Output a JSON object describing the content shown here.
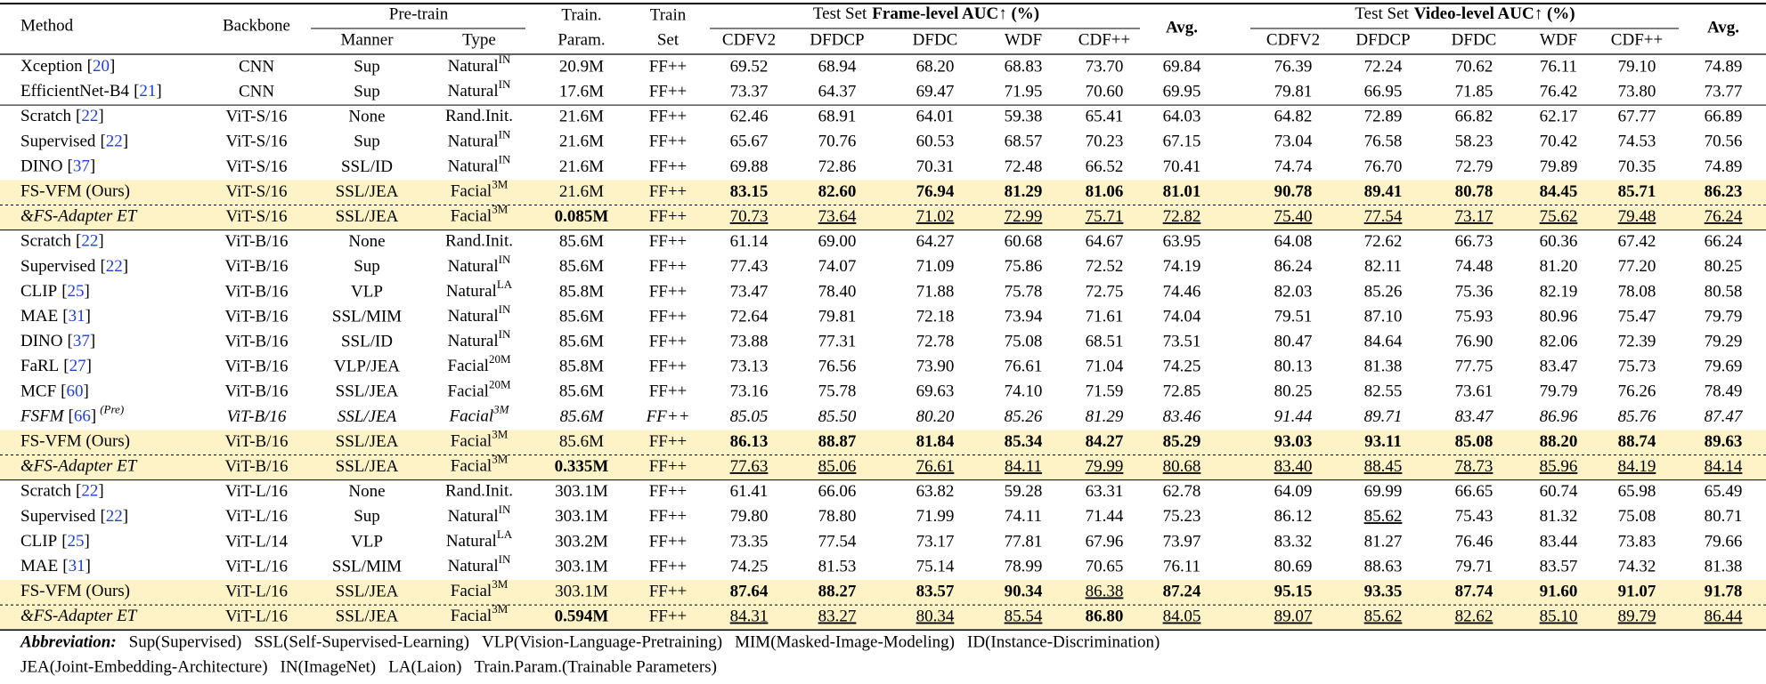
{
  "table": {
    "header": {
      "method": "Method",
      "backbone": "Backbone",
      "pretrain": "Pre-train",
      "manner": "Manner",
      "type": "Type",
      "train_param": [
        "Train.",
        "Param."
      ],
      "train_set": [
        "Train",
        "Set"
      ],
      "frame": {
        "prefix": "Test Set",
        "bold": "Frame-level AUC↑ (%)"
      },
      "video": {
        "prefix": "Test Set",
        "bold": "Video-level AUC↑ (%)"
      },
      "datasets": [
        "CDFV2",
        "DFDCP",
        "DFDC",
        "WDF",
        "CDF++"
      ],
      "avg": "Avg."
    },
    "sections": [
      [
        {
          "method": "Xception",
          "ref": "[20]",
          "backbone": "CNN",
          "manner": "Sup",
          "type": "Natural",
          "type_sup": "IN",
          "params": "20.9M",
          "train_set": "FF++",
          "scores": [
            "69.52",
            "68.94",
            "68.20",
            "68.83",
            "73.70",
            "69.84",
            "76.39",
            "72.24",
            "70.62",
            "76.11",
            "79.10",
            "74.89"
          ]
        },
        {
          "method": "EfficientNet-B4",
          "ref": "[21]",
          "backbone": "CNN",
          "manner": "Sup",
          "type": "Natural",
          "type_sup": "IN",
          "params": "17.6M",
          "train_set": "FF++",
          "scores": [
            "73.37",
            "64.37",
            "69.47",
            "71.95",
            "70.60",
            "69.95",
            "79.81",
            "66.95",
            "71.85",
            "76.42",
            "73.80",
            "73.77"
          ]
        }
      ],
      [
        {
          "method": "Scratch",
          "ref": "[22]",
          "backbone": "ViT-S/16",
          "manner": "None",
          "type": "Rand.Init.",
          "params": "21.6M",
          "train_set": "FF++",
          "scores": [
            "62.46",
            "68.91",
            "64.01",
            "59.38",
            "65.41",
            "64.03",
            "64.82",
            "72.89",
            "66.82",
            "62.17",
            "67.77",
            "66.89"
          ]
        },
        {
          "method": "Supervised",
          "ref": "[22]",
          "backbone": "ViT-S/16",
          "manner": "Sup",
          "type": "Natural",
          "type_sup": "IN",
          "params": "21.6M",
          "train_set": "FF++",
          "scores": [
            "65.67",
            "70.76",
            "60.53",
            "68.57",
            "70.23",
            "67.15",
            "73.04",
            "76.58",
            "58.23",
            "70.42",
            "74.53",
            "70.56"
          ]
        },
        {
          "method": "DINO",
          "ref": "[37]",
          "backbone": "ViT-S/16",
          "manner": "SSL/ID",
          "type": "Natural",
          "type_sup": "IN",
          "params": "21.6M",
          "train_set": "FF++",
          "scores": [
            "69.88",
            "72.86",
            "70.31",
            "72.48",
            "66.52",
            "70.41",
            "74.74",
            "76.70",
            "72.79",
            "79.89",
            "70.35",
            "74.89"
          ]
        },
        {
          "method": "FS-VFM (Ours)",
          "backbone": "ViT-S/16",
          "manner": "SSL/JEA",
          "type": "Facial",
          "type_sup": "3M",
          "params": "21.6M",
          "train_set": "FF++",
          "scores": [
            "83.15",
            "82.60",
            "76.94",
            "81.29",
            "81.06",
            "81.01",
            "90.78",
            "89.41",
            "80.78",
            "84.45",
            "85.71",
            "86.23"
          ],
          "highlight": true,
          "bold": [
            0,
            1,
            2,
            3,
            4,
            5,
            6,
            7,
            8,
            9,
            10,
            11
          ]
        },
        {
          "method": "&FS-Adapter ET",
          "backbone": "ViT-S/16",
          "manner": "SSL/JEA",
          "type": "Facial",
          "type_sup": "3M",
          "params": "0.085M",
          "train_set": "FF++",
          "scores": [
            "70.73",
            "73.64",
            "71.02",
            "72.99",
            "75.71",
            "72.82",
            "75.40",
            "77.54",
            "73.17",
            "75.62",
            "79.48",
            "76.24"
          ],
          "highlight": true,
          "dashed_above": true,
          "italic": "method",
          "params_bold": true,
          "underline": [
            0,
            1,
            2,
            3,
            4,
            5,
            6,
            7,
            8,
            9,
            10,
            11
          ]
        }
      ],
      [
        {
          "method": "Scratch",
          "ref": "[22]",
          "backbone": "ViT-B/16",
          "manner": "None",
          "type": "Rand.Init.",
          "params": "85.6M",
          "train_set": "FF++",
          "scores": [
            "61.14",
            "69.00",
            "64.27",
            "60.68",
            "64.67",
            "63.95",
            "64.08",
            "72.62",
            "66.73",
            "60.36",
            "67.42",
            "66.24"
          ]
        },
        {
          "method": "Supervised",
          "ref": "[22]",
          "backbone": "ViT-B/16",
          "manner": "Sup",
          "type": "Natural",
          "type_sup": "IN",
          "params": "85.6M",
          "train_set": "FF++",
          "scores": [
            "77.43",
            "74.07",
            "71.09",
            "75.86",
            "72.52",
            "74.19",
            "86.24",
            "82.11",
            "74.48",
            "81.20",
            "77.20",
            "80.25"
          ]
        },
        {
          "method": "CLIP",
          "ref": "[25]",
          "backbone": "ViT-B/16",
          "manner": "VLP",
          "type": "Natural",
          "type_sup": "LA",
          "params": "85.8M",
          "train_set": "FF++",
          "scores": [
            "73.47",
            "78.40",
            "71.88",
            "75.78",
            "72.75",
            "74.46",
            "82.03",
            "85.26",
            "75.36",
            "82.19",
            "78.08",
            "80.58"
          ]
        },
        {
          "method": "MAE",
          "ref": "[31]",
          "backbone": "ViT-B/16",
          "manner": "SSL/MIM",
          "type": "Natural",
          "type_sup": "IN",
          "params": "85.6M",
          "train_set": "FF++",
          "scores": [
            "72.64",
            "79.81",
            "72.18",
            "73.94",
            "71.61",
            "74.04",
            "79.51",
            "87.10",
            "75.93",
            "80.96",
            "75.47",
            "79.79"
          ]
        },
        {
          "method": "DINO",
          "ref": "[37]",
          "backbone": "ViT-B/16",
          "manner": "SSL/ID",
          "type": "Natural",
          "type_sup": "IN",
          "params": "85.6M",
          "train_set": "FF++",
          "scores": [
            "73.88",
            "77.31",
            "72.78",
            "75.08",
            "68.51",
            "73.51",
            "80.47",
            "84.64",
            "76.90",
            "82.06",
            "72.39",
            "79.29"
          ]
        },
        {
          "method": "FaRL",
          "ref": "[27]",
          "backbone": "ViT-B/16",
          "manner": "VLP/JEA",
          "type": "Facial",
          "type_sup": "20M",
          "params": "85.8M",
          "train_set": "FF++",
          "scores": [
            "73.13",
            "76.56",
            "73.90",
            "76.61",
            "71.04",
            "74.25",
            "80.13",
            "81.38",
            "77.75",
            "83.47",
            "75.73",
            "79.69"
          ]
        },
        {
          "method": "MCF",
          "ref": "[60]",
          "backbone": "ViT-B/16",
          "manner": "SSL/JEA",
          "type": "Facial",
          "type_sup": "20M",
          "params": "85.6M",
          "train_set": "FF++",
          "scores": [
            "73.16",
            "75.78",
            "69.63",
            "74.10",
            "71.59",
            "72.85",
            "80.25",
            "82.55",
            "73.61",
            "79.79",
            "76.26",
            "78.49"
          ]
        },
        {
          "method": "FSFM",
          "ref": "[66]",
          "method_sup": "(Pre)",
          "backbone": "ViT-B/16",
          "manner": "SSL/JEA",
          "type": "Facial",
          "type_sup": "3M",
          "params": "85.6M",
          "train_set": "FF++",
          "scores": [
            "85.05",
            "85.50",
            "80.20",
            "85.26",
            "81.29",
            "83.46",
            "91.44",
            "89.71",
            "83.47",
            "86.96",
            "85.76",
            "87.47"
          ],
          "italic": "row"
        },
        {
          "method": "FS-VFM (Ours)",
          "backbone": "ViT-B/16",
          "manner": "SSL/JEA",
          "type": "Facial",
          "type_sup": "3M",
          "params": "85.6M",
          "train_set": "FF++",
          "scores": [
            "86.13",
            "88.87",
            "81.84",
            "85.34",
            "84.27",
            "85.29",
            "93.03",
            "93.11",
            "85.08",
            "88.20",
            "88.74",
            "89.63"
          ],
          "highlight": true,
          "bold": [
            0,
            1,
            2,
            3,
            4,
            5,
            6,
            7,
            8,
            9,
            10,
            11
          ]
        },
        {
          "method": "&FS-Adapter ET",
          "backbone": "ViT-B/16",
          "manner": "SSL/JEA",
          "type": "Facial",
          "type_sup": "3M",
          "params": "0.335M",
          "train_set": "FF++",
          "scores": [
            "77.63",
            "85.06",
            "76.61",
            "84.11",
            "79.99",
            "80.68",
            "83.40",
            "88.45",
            "78.73",
            "85.96",
            "84.19",
            "84.14"
          ],
          "highlight": true,
          "dashed_above": true,
          "italic": "method",
          "params_bold": true,
          "underline": [
            0,
            1,
            2,
            3,
            4,
            5,
            6,
            7,
            8,
            9,
            10,
            11
          ]
        }
      ],
      [
        {
          "method": "Scratch",
          "ref": "[22]",
          "backbone": "ViT-L/16",
          "manner": "None",
          "type": "Rand.Init.",
          "params": "303.1M",
          "train_set": "FF++",
          "scores": [
            "61.41",
            "66.06",
            "63.82",
            "59.28",
            "63.31",
            "62.78",
            "64.09",
            "69.99",
            "66.65",
            "60.74",
            "65.98",
            "65.49"
          ]
        },
        {
          "method": "Supervised",
          "ref": "[22]",
          "backbone": "ViT-L/16",
          "manner": "Sup",
          "type": "Natural",
          "type_sup": "IN",
          "params": "303.1M",
          "train_set": "FF++",
          "scores": [
            "79.80",
            "78.80",
            "71.99",
            "74.11",
            "71.44",
            "75.23",
            "86.12",
            "85.62",
            "75.43",
            "81.32",
            "75.08",
            "80.71"
          ],
          "underline": [
            7
          ]
        },
        {
          "method": "CLIP",
          "ref": "[25]",
          "backbone": "ViT-L/14",
          "manner": "VLP",
          "type": "Natural",
          "type_sup": "LA",
          "params": "303.2M",
          "train_set": "FF++",
          "scores": [
            "73.35",
            "77.54",
            "73.17",
            "77.81",
            "67.96",
            "73.97",
            "83.32",
            "81.27",
            "76.46",
            "83.44",
            "73.83",
            "79.66"
          ]
        },
        {
          "method": "MAE",
          "ref": "[31]",
          "backbone": "ViT-L/16",
          "manner": "SSL/MIM",
          "type": "Natural",
          "type_sup": "IN",
          "params": "303.1M",
          "train_set": "FF++",
          "scores": [
            "74.25",
            "81.53",
            "75.14",
            "78.99",
            "70.65",
            "76.11",
            "80.69",
            "88.63",
            "79.71",
            "83.57",
            "74.32",
            "81.38"
          ]
        },
        {
          "method": "FS-VFM (Ours)",
          "backbone": "ViT-L/16",
          "manner": "SSL/JEA",
          "type": "Facial",
          "type_sup": "3M",
          "params": "303.1M",
          "train_set": "FF++",
          "scores": [
            "87.64",
            "88.27",
            "83.57",
            "90.34",
            "86.38",
            "87.24",
            "95.15",
            "93.35",
            "87.74",
            "91.60",
            "91.07",
            "91.78"
          ],
          "highlight": true,
          "bold": [
            0,
            1,
            2,
            3,
            5,
            6,
            7,
            8,
            9,
            10,
            11
          ],
          "underline": [
            4
          ]
        },
        {
          "method": "&FS-Adapter ET",
          "backbone": "ViT-L/16",
          "manner": "SSL/JEA",
          "type": "Facial",
          "type_sup": "3M",
          "params": "0.594M",
          "train_set": "FF++",
          "scores": [
            "84.31",
            "83.27",
            "80.34",
            "85.54",
            "86.80",
            "84.05",
            "89.07",
            "85.62",
            "82.62",
            "85.10",
            "89.79",
            "86.44"
          ],
          "highlight": true,
          "dashed_above": true,
          "italic": "method",
          "params_bold": true,
          "bold": [
            4
          ],
          "underline": [
            0,
            1,
            2,
            3,
            5,
            6,
            7,
            8,
            9,
            10,
            11
          ]
        }
      ]
    ],
    "footnote": {
      "label": "Abbreviation:",
      "lines": [
        [
          "Sup(Supervised)",
          "SSL(Self-Supervised-Learning)",
          "VLP(Vision-Language-Pretraining)",
          "MIM(Masked-Image-Modeling)",
          "ID(Instance-Discrimination)"
        ],
        [
          "JEA(Joint-Embedding-Architecture)",
          "IN(ImageNet)",
          "LA(Laion)",
          "Train.Param.(Trainable Parameters)"
        ]
      ]
    }
  }
}
